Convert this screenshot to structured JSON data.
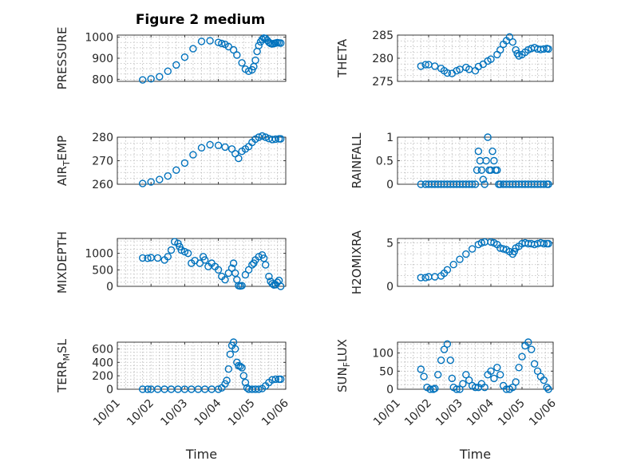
{
  "figure_title": "Figure 2 medium",
  "colors": {
    "marker": "#0072BD",
    "axis": "#262626",
    "grid": "#b8b8b8",
    "background": "#ffffff"
  },
  "chart_data": [
    {
      "type": "scatter",
      "title": "Figure 2 medium",
      "ylabel": "PRESSURE",
      "xlabel": "",
      "ylim": [
        790,
        1010
      ],
      "yticks": [
        800,
        900,
        1000
      ],
      "xlim": [
        "10/01",
        "10/06"
      ],
      "xticks": [
        "10/01",
        "10/02",
        "10/03",
        "10/04",
        "10/05",
        "10/06"
      ],
      "grid": true,
      "x": [
        0.75,
        1.0,
        1.25,
        1.5,
        1.75,
        2.0,
        2.25,
        2.5,
        2.75,
        3.0,
        3.1,
        3.2,
        3.3,
        3.45,
        3.55,
        3.7,
        3.8,
        3.9,
        4.0,
        4.05,
        4.1,
        4.15,
        4.2,
        4.25,
        4.3,
        4.35,
        4.4,
        4.45,
        4.5,
        4.55,
        4.6,
        4.65,
        4.7,
        4.75,
        4.8,
        4.85
      ],
      "y": [
        797,
        802,
        812,
        838,
        868,
        905,
        945,
        980,
        983,
        975,
        970,
        966,
        955,
        940,
        915,
        878,
        848,
        838,
        845,
        860,
        890,
        932,
        960,
        978,
        990,
        996,
        994,
        985,
        976,
        970,
        968,
        970,
        972,
        974,
        973,
        972
      ]
    },
    {
      "type": "scatter",
      "ylabel": "THETA",
      "xlabel": "",
      "ylim": [
        275,
        285
      ],
      "yticks": [
        275,
        280,
        285
      ],
      "xlim": [
        "10/01",
        "10/06"
      ],
      "xticks": [
        "10/01",
        "10/02",
        "10/03",
        "10/04",
        "10/05",
        "10/06"
      ],
      "grid": true,
      "x": [
        0.75,
        0.9,
        1.0,
        1.2,
        1.4,
        1.5,
        1.6,
        1.75,
        1.9,
        2.0,
        2.2,
        2.3,
        2.5,
        2.6,
        2.75,
        2.9,
        3.0,
        3.2,
        3.3,
        3.4,
        3.5,
        3.6,
        3.7,
        3.8,
        3.85,
        3.9,
        4.0,
        4.1,
        4.2,
        4.3,
        4.4,
        4.5,
        4.6,
        4.7,
        4.8,
        4.85
      ],
      "y": [
        278.3,
        278.6,
        278.6,
        278.3,
        277.8,
        277.3,
        276.8,
        276.7,
        277.3,
        277.6,
        278.0,
        277.6,
        277.3,
        278.2,
        278.7,
        279.4,
        279.8,
        280.8,
        281.8,
        283.0,
        283.8,
        284.6,
        283.5,
        281.8,
        281.0,
        280.5,
        280.8,
        281.3,
        281.8,
        282.1,
        282.3,
        282.0,
        281.9,
        282.0,
        282.1,
        282.0
      ]
    },
    {
      "type": "scatter",
      "ylabel": "AIR_TEMP",
      "xlabel": "",
      "ylim": [
        260,
        280
      ],
      "yticks": [
        260,
        270,
        280
      ],
      "xlim": [
        "10/01",
        "10/06"
      ],
      "xticks": [
        "10/01",
        "10/02",
        "10/03",
        "10/04",
        "10/05",
        "10/06"
      ],
      "grid": true,
      "x": [
        0.75,
        1.0,
        1.25,
        1.5,
        1.75,
        2.0,
        2.25,
        2.5,
        2.75,
        3.0,
        3.2,
        3.4,
        3.5,
        3.6,
        3.7,
        3.8,
        3.9,
        4.0,
        4.1,
        4.2,
        4.3,
        4.4,
        4.5,
        4.6,
        4.7,
        4.8,
        4.85
      ],
      "y": [
        260.3,
        261,
        262,
        263.5,
        266,
        269,
        272.5,
        275.5,
        276.8,
        276.5,
        275.8,
        275,
        273,
        271,
        274,
        275,
        276,
        277.8,
        279.2,
        280,
        280.5,
        280,
        279.4,
        279,
        279.2,
        279.3,
        279.3
      ]
    },
    {
      "type": "scatter",
      "ylabel": "RAINFALL",
      "xlabel": "",
      "ylim": [
        0,
        1
      ],
      "yticks": [
        0,
        0.5,
        1
      ],
      "xlim": [
        "10/01",
        "10/06"
      ],
      "xticks": [
        "10/01",
        "10/02",
        "10/03",
        "10/04",
        "10/05",
        "10/06"
      ],
      "grid": true,
      "x": [
        0.75,
        0.9,
        1.0,
        1.1,
        1.2,
        1.3,
        1.4,
        1.5,
        1.6,
        1.7,
        1.8,
        1.9,
        2.0,
        2.1,
        2.2,
        2.3,
        2.4,
        2.5,
        2.55,
        2.6,
        2.65,
        2.7,
        2.75,
        2.8,
        2.85,
        2.9,
        2.95,
        3.0,
        3.05,
        3.1,
        3.15,
        3.2,
        3.25,
        3.3,
        3.4,
        3.5,
        3.6,
        3.7,
        3.8,
        3.9,
        4.0,
        4.1,
        4.2,
        4.3,
        4.4,
        4.5,
        4.6,
        4.7,
        4.8,
        4.85
      ],
      "y": [
        0,
        0,
        0,
        0,
        0,
        0,
        0,
        0,
        0,
        0,
        0,
        0,
        0,
        0,
        0,
        0,
        0,
        0,
        0.3,
        0.7,
        0.5,
        0.3,
        0.1,
        0,
        0.5,
        1.0,
        0.3,
        0.3,
        0.7,
        0.5,
        0.3,
        0.3,
        0,
        0,
        0,
        0,
        0,
        0,
        0,
        0,
        0,
        0,
        0,
        0,
        0,
        0,
        0,
        0,
        0,
        0
      ]
    },
    {
      "type": "scatter",
      "ylabel": "MIXDEPTH",
      "xlabel": "",
      "ylim": [
        0,
        1450
      ],
      "yticks": [
        0,
        500,
        1000
      ],
      "xlim": [
        "10/01",
        "10/06"
      ],
      "xticks": [
        "10/01",
        "10/02",
        "10/03",
        "10/04",
        "10/05",
        "10/06"
      ],
      "grid": true,
      "x": [
        0.75,
        0.9,
        1.0,
        1.2,
        1.4,
        1.5,
        1.6,
        1.7,
        1.8,
        1.85,
        1.9,
        2.0,
        2.1,
        2.2,
        2.3,
        2.45,
        2.55,
        2.6,
        2.7,
        2.8,
        2.9,
        3.0,
        3.1,
        3.2,
        3.3,
        3.4,
        3.45,
        3.5,
        3.55,
        3.6,
        3.65,
        3.7,
        3.8,
        3.9,
        4.0,
        4.05,
        4.1,
        4.2,
        4.3,
        4.35,
        4.4,
        4.5,
        4.55,
        4.6,
        4.65,
        4.7,
        4.75,
        4.8,
        4.85
      ],
      "y": [
        860,
        850,
        870,
        860,
        800,
        900,
        1100,
        1350,
        1300,
        1200,
        1100,
        1050,
        1000,
        700,
        780,
        700,
        900,
        800,
        600,
        700,
        600,
        500,
        300,
        200,
        400,
        550,
        700,
        400,
        200,
        20,
        10,
        20,
        350,
        500,
        650,
        700,
        800,
        900,
        950,
        850,
        650,
        300,
        150,
        80,
        40,
        50,
        120,
        180,
        0
      ]
    },
    {
      "type": "scatter",
      "ylabel": "H2OMIXRA",
      "xlabel": "",
      "ylim": [
        0,
        5.5
      ],
      "yticks": [
        0,
        5
      ],
      "xlim": [
        "10/01",
        "10/06"
      ],
      "xticks": [
        "10/01",
        "10/02",
        "10/03",
        "10/04",
        "10/05",
        "10/06"
      ],
      "grid": true,
      "x": [
        0.75,
        0.9,
        1.0,
        1.2,
        1.4,
        1.5,
        1.6,
        1.8,
        2.0,
        2.2,
        2.4,
        2.6,
        2.7,
        2.8,
        3.0,
        3.1,
        3.2,
        3.3,
        3.4,
        3.5,
        3.6,
        3.7,
        3.75,
        3.8,
        3.9,
        4.0,
        4.1,
        4.2,
        4.3,
        4.4,
        4.5,
        4.6,
        4.7,
        4.8,
        4.85
      ],
      "y": [
        1.0,
        1.0,
        1.1,
        1.1,
        1.2,
        1.5,
        1.9,
        2.5,
        3.1,
        3.7,
        4.3,
        4.8,
        5.0,
        5.1,
        5.1,
        5.0,
        4.8,
        4.4,
        4.3,
        4.2,
        4.0,
        3.7,
        4.0,
        4.4,
        4.6,
        4.9,
        5.0,
        4.9,
        4.9,
        4.8,
        4.9,
        5.0,
        4.9,
        4.9,
        4.9
      ]
    },
    {
      "type": "scatter",
      "ylabel": "TERR_MSL",
      "xlabel": "Time",
      "ylim": [
        0,
        700
      ],
      "yticks": [
        0,
        200,
        400,
        600
      ],
      "xlim": [
        "10/01",
        "10/06"
      ],
      "xticks": [
        "10/01",
        "10/02",
        "10/03",
        "10/04",
        "10/05",
        "10/06"
      ],
      "grid": true,
      "x": [
        0.75,
        0.9,
        1.0,
        1.2,
        1.4,
        1.6,
        1.8,
        2.0,
        2.2,
        2.4,
        2.6,
        2.8,
        3.0,
        3.1,
        3.2,
        3.25,
        3.3,
        3.35,
        3.4,
        3.45,
        3.5,
        3.55,
        3.6,
        3.65,
        3.7,
        3.75,
        3.8,
        3.85,
        3.9,
        4.0,
        4.1,
        4.2,
        4.3,
        4.4,
        4.5,
        4.6,
        4.7,
        4.8,
        4.85
      ],
      "y": [
        0,
        0,
        0,
        0,
        0,
        0,
        0,
        0,
        0,
        0,
        0,
        0,
        0,
        20,
        80,
        130,
        300,
        520,
        650,
        700,
        600,
        400,
        350,
        340,
        320,
        200,
        100,
        20,
        0,
        0,
        0,
        0,
        10,
        50,
        100,
        140,
        150,
        150,
        150
      ]
    },
    {
      "type": "scatter",
      "ylabel": "SUN_FLUX",
      "xlabel": "Time",
      "ylim": [
        0,
        130
      ],
      "yticks": [
        0,
        50,
        100
      ],
      "xlim": [
        "10/01",
        "10/06"
      ],
      "xticks": [
        "10/01",
        "10/02",
        "10/03",
        "10/04",
        "10/05",
        "10/06"
      ],
      "grid": true,
      "x": [
        0.75,
        0.85,
        0.95,
        1.05,
        1.15,
        1.2,
        1.3,
        1.4,
        1.5,
        1.6,
        1.7,
        1.75,
        1.8,
        1.9,
        2.0,
        2.1,
        2.2,
        2.3,
        2.4,
        2.5,
        2.6,
        2.7,
        2.8,
        2.9,
        3.0,
        3.1,
        3.2,
        3.3,
        3.4,
        3.5,
        3.6,
        3.7,
        3.8,
        3.9,
        4.0,
        4.1,
        4.2,
        4.3,
        4.4,
        4.5,
        4.6,
        4.7,
        4.8,
        4.85
      ],
      "y": [
        55,
        35,
        5,
        0,
        0,
        2,
        40,
        80,
        110,
        125,
        80,
        30,
        5,
        0,
        0,
        15,
        40,
        25,
        10,
        5,
        5,
        15,
        5,
        40,
        50,
        30,
        60,
        40,
        10,
        0,
        0,
        5,
        20,
        60,
        90,
        120,
        130,
        110,
        70,
        50,
        35,
        25,
        5,
        0
      ]
    }
  ]
}
